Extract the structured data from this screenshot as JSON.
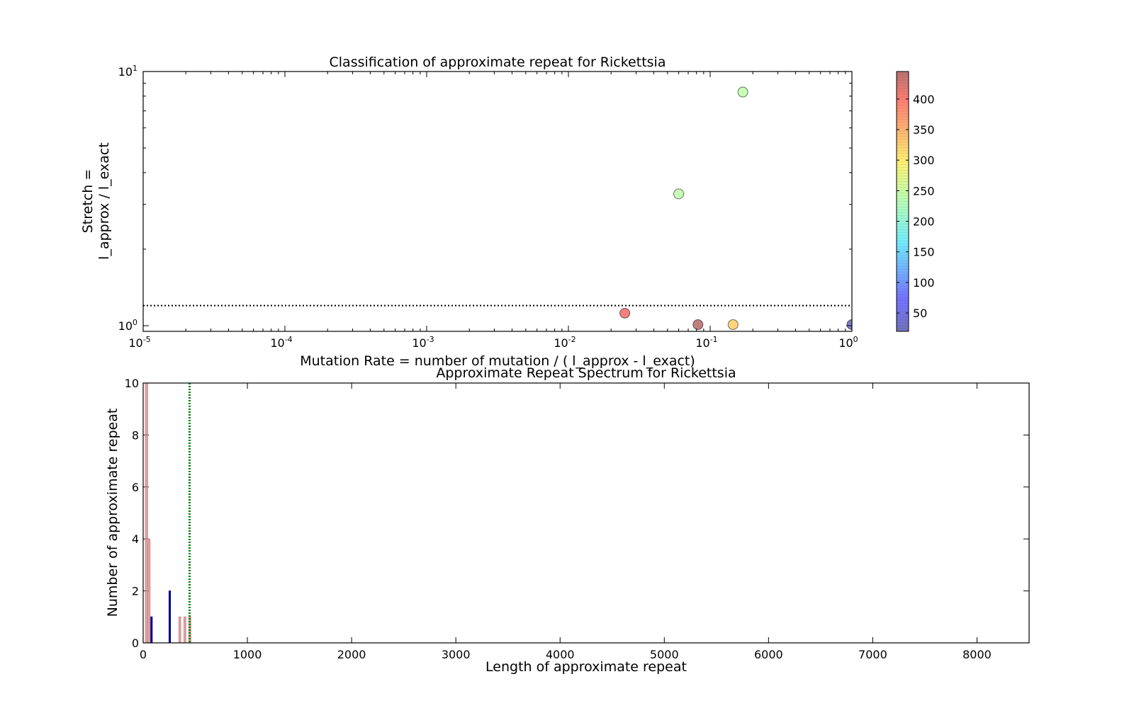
{
  "chart_data": [
    {
      "type": "scatter",
      "title": "Classification of approximate repeat for Rickettsia",
      "xlabel": "Mutation Rate = number of mutation / ( l_approx - l_exact)",
      "ylabel_lines": [
        "Stretch =",
        "l_approx / l_exact"
      ],
      "xscale": "log",
      "yscale": "log",
      "xlim": [
        1e-05,
        1
      ],
      "ylim": [
        0.95,
        10
      ],
      "x_ticks": [
        {
          "value": 1e-05,
          "base": "10",
          "exp": "-5"
        },
        {
          "value": 0.0001,
          "base": "10",
          "exp": "-4"
        },
        {
          "value": 0.001,
          "base": "10",
          "exp": "-3"
        },
        {
          "value": 0.01,
          "base": "10",
          "exp": "-2"
        },
        {
          "value": 0.1,
          "base": "10",
          "exp": "-1"
        },
        {
          "value": 1,
          "base": "10",
          "exp": "0"
        }
      ],
      "y_ticks": [
        {
          "value": 1,
          "base": "10",
          "exp": "0"
        },
        {
          "value": 10,
          "base": "10",
          "exp": "1"
        }
      ],
      "threshold_line": {
        "y": 1.2,
        "style": "dotted",
        "color": "#000000"
      },
      "points": [
        {
          "x": 0.17,
          "y": 8.3,
          "length": 240
        },
        {
          "x": 0.06,
          "y": 3.3,
          "length": 240
        },
        {
          "x": 0.025,
          "y": 1.12,
          "length": 400
        },
        {
          "x": 0.082,
          "y": 1.01,
          "length": 445
        },
        {
          "x": 0.145,
          "y": 1.01,
          "length": 320
        },
        {
          "x": 1.0,
          "y": 1.01,
          "length": 10
        }
      ],
      "colorbar": {
        "colormap": "jet",
        "range": [
          20,
          445
        ],
        "ticks": [
          50,
          100,
          150,
          200,
          250,
          300,
          350,
          400
        ],
        "alpha": 0.5
      },
      "grid": false
    },
    {
      "type": "bar",
      "title": "Approximate Repeat Spectrum for Rickettsia",
      "xlabel": "Length of approximate repeat",
      "ylabel": "Number of approximate repeat",
      "xlim": [
        0,
        8500
      ],
      "ylim": [
        0,
        10
      ],
      "x_ticks": [
        0,
        1000,
        2000,
        3000,
        4000,
        5000,
        6000,
        7000,
        8000
      ],
      "y_ticks": [
        0,
        2,
        4,
        6,
        8,
        10
      ],
      "series": [
        {
          "color": "#cd8585",
          "alpha": 0.7,
          "bars": [
            {
              "x": 32,
              "width": 22,
              "value": 10
            },
            {
              "x": 55,
              "width": 22,
              "value": 4
            },
            {
              "x": 352,
              "width": 18,
              "value": 1
            },
            {
              "x": 400,
              "width": 18,
              "value": 1
            },
            {
              "x": 448,
              "width": 18,
              "value": 1
            }
          ]
        },
        {
          "color": "#00008b",
          "alpha": 1.0,
          "bars": [
            {
              "x": 80,
              "width": 14,
              "value": 1
            },
            {
              "x": 255,
              "width": 14,
              "value": 2
            }
          ]
        }
      ],
      "threshold_line": {
        "x": 445,
        "style": "dotted",
        "color": "#008000"
      },
      "grid": false
    }
  ]
}
